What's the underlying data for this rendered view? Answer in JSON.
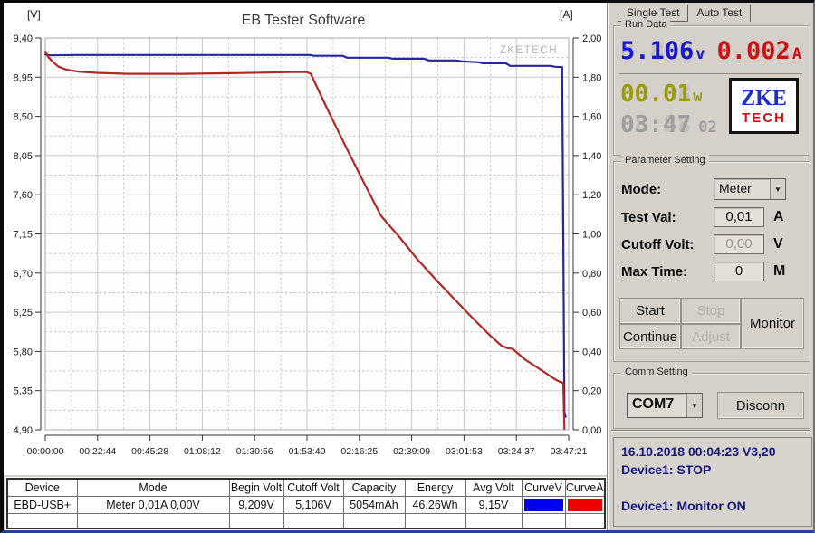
{
  "chart_data": {
    "type": "line",
    "title": "EB Tester Software",
    "watermark": "ZKETECH",
    "grid": true,
    "x_axis": {
      "label": "time",
      "range_seconds": [
        0,
        13641
      ],
      "ticks": [
        "00:00:00",
        "00:22:44",
        "00:45:28",
        "01:08:12",
        "01:30:56",
        "01:53:40",
        "02:16:25",
        "02:39:09",
        "03:01:53",
        "03:24:37",
        "03:47:21"
      ]
    },
    "y_left": {
      "label": "[V]",
      "range": [
        4.9,
        9.4
      ],
      "ticks": [
        "9,40",
        "8,95",
        "8,50",
        "8,05",
        "7,60",
        "7,15",
        "6,70",
        "6,25",
        "5,80",
        "5,35",
        "4,90"
      ]
    },
    "y_right": {
      "label": "[A]",
      "range": [
        0.0,
        2.0
      ],
      "ticks": [
        "2,00",
        "1,80",
        "1,60",
        "1,40",
        "1,20",
        "1,00",
        "0,80",
        "0,60",
        "0,40",
        "0,20",
        "0,00"
      ]
    },
    "series": [
      {
        "name": "CurveV",
        "axis": "left",
        "color": "#26269e",
        "points": [
          [
            0,
            9.21
          ],
          [
            120,
            9.2
          ],
          [
            800,
            9.205
          ],
          [
            2400,
            9.205
          ],
          [
            5900,
            9.205
          ],
          [
            6900,
            9.205
          ],
          [
            7000,
            9.195
          ],
          [
            7750,
            9.195
          ],
          [
            7860,
            9.173
          ],
          [
            8930,
            9.173
          ],
          [
            9060,
            9.162
          ],
          [
            9870,
            9.162
          ],
          [
            10000,
            9.142
          ],
          [
            10700,
            9.142
          ],
          [
            10870,
            9.131
          ],
          [
            11290,
            9.121
          ],
          [
            11410,
            9.11
          ],
          [
            12000,
            9.11
          ],
          [
            12115,
            9.08
          ],
          [
            13170,
            9.08
          ],
          [
            13290,
            9.069
          ],
          [
            13470,
            9.065
          ],
          [
            13530,
            5.106
          ],
          [
            13560,
            5.05
          ]
        ]
      },
      {
        "name": "CurveA",
        "axis": "right",
        "color": "#b32626",
        "points": [
          [
            0,
            1.93
          ],
          [
            90,
            1.9
          ],
          [
            210,
            1.876
          ],
          [
            350,
            1.853
          ],
          [
            560,
            1.838
          ],
          [
            870,
            1.828
          ],
          [
            1340,
            1.822
          ],
          [
            2160,
            1.817
          ],
          [
            3580,
            1.817
          ],
          [
            5000,
            1.821
          ],
          [
            6400,
            1.826
          ],
          [
            6820,
            1.826
          ],
          [
            6920,
            1.817
          ],
          [
            7340,
            1.642
          ],
          [
            7810,
            1.454
          ],
          [
            8280,
            1.271
          ],
          [
            8750,
            1.092
          ],
          [
            9220,
            0.986
          ],
          [
            9690,
            0.872
          ],
          [
            10160,
            0.771
          ],
          [
            10630,
            0.674
          ],
          [
            11100,
            0.578
          ],
          [
            11570,
            0.486
          ],
          [
            11880,
            0.431
          ],
          [
            12040,
            0.417
          ],
          [
            12180,
            0.413
          ],
          [
            12510,
            0.358
          ],
          [
            12980,
            0.298
          ],
          [
            13260,
            0.261
          ],
          [
            13380,
            0.248
          ],
          [
            13500,
            0.239
          ],
          [
            13530,
            0.005
          ]
        ]
      }
    ]
  },
  "tabs": {
    "single": "Single Test",
    "auto": "Auto Test"
  },
  "run_data": {
    "label": "Run Data",
    "volt": {
      "value": "5.106",
      "ghost": "8.888",
      "unit": "v"
    },
    "amp": {
      "value": "0.002",
      "ghost": "8.888",
      "unit": "A"
    },
    "watt": {
      "value": "00.01",
      "ghost": "88.88",
      "unit": "w"
    },
    "time": {
      "value": "03:47",
      "ghost": "88:88",
      "seconds": "02"
    },
    "logo_top": "ZKE",
    "logo_bottom": "TECH"
  },
  "parameters": {
    "label": "Parameter Setting",
    "mode": {
      "label": "Mode:",
      "value": "Meter"
    },
    "test_val": {
      "label": "Test Val:",
      "value": "0,01",
      "unit": "A"
    },
    "cutoff_volt": {
      "label": "Cutoff Volt:",
      "value": "0,00",
      "unit": "V"
    },
    "max_time": {
      "label": "Max Time:",
      "value": "0",
      "unit": "M"
    },
    "buttons": {
      "start": "Start",
      "stop": "Stop",
      "continue": "Continue",
      "adjust": "Adjust",
      "monitor": "Monitor"
    }
  },
  "comm": {
    "label": "Comm Setting",
    "port": "COM7",
    "disconnect": "Disconn"
  },
  "status_log": {
    "line1": "16.10.2018 00:04:23  V3,20",
    "line2": "Device1: STOP",
    "line3": "Device1: Monitor ON"
  },
  "table": {
    "headers": [
      "Device",
      "Mode",
      "Begin Volt",
      "Cutoff Volt",
      "Capacity",
      "Energy",
      "Avg Volt",
      "CurveV",
      "CurveA"
    ],
    "row": {
      "device": "EBD-USB+",
      "mode": "Meter 0,01A 0,00V",
      "begin_volt": "9,209V",
      "cutoff_volt": "5,106V",
      "capacity": "5054mAh",
      "energy": "46,26Wh",
      "avg_volt": "9,15V",
      "curve_v_color": "#0202ee",
      "curve_a_color": "#ee0202"
    }
  }
}
